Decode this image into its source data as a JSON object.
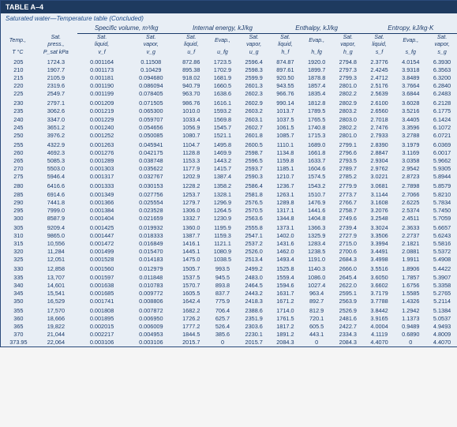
{
  "title": "TABLE A–4",
  "subtitle": "Saturated water—Temperature table (Concluded)",
  "group_headers": [
    "Specific volume,\nm³/kg",
    "Internal energy,\nkJ/kg",
    "Enthalpy,\nkJ/kg",
    "Entropy,\nkJ/kg·K"
  ],
  "col_labels_r1": [
    "Temp.,",
    "Sat. press.,",
    "Sat. liquid,",
    "Sat. vapor,",
    "Sat. liquid,",
    "Evap.,",
    "Sat. vapor,",
    "Sat. liquid,",
    "Evap.,",
    "Sat. vapor,",
    "Sat. liquid,",
    "Evap.,",
    "Sat. vapor,"
  ],
  "col_symbols": [
    "T °C",
    "P_sat kPa",
    "v_f",
    "v_g",
    "u_f",
    "u_fg",
    "u_g",
    "h_f",
    "h_fg",
    "h_g",
    "s_f",
    "s_fg",
    "s_g"
  ],
  "rows": [
    [
      "205",
      "1724.3",
      "0.001164",
      "0.11508",
      "872.86",
      "1723.5",
      "2596.4",
      "874.87",
      "1920.0",
      "2794.8",
      "2.3776",
      "4.0154",
      "6.3930"
    ],
    [
      "210",
      "1907.7",
      "0.001173",
      "0.10429",
      "895.38",
      "1702.9",
      "2598.3",
      "897.61",
      "1899.7",
      "2797.3",
      "2.4245",
      "3.9318",
      "6.3563"
    ],
    [
      "215",
      "2105.9",
      "0.001181",
      "0.094680",
      "918.02",
      "1681.9",
      "2599.9",
      "920.50",
      "1878.8",
      "2799.3",
      "2.4712",
      "3.8489",
      "6.3200"
    ],
    [
      "220",
      "2319.6",
      "0.001190",
      "0.086094",
      "940.79",
      "1660.5",
      "2601.3",
      "943.55",
      "1857.4",
      "2801.0",
      "2.5176",
      "3.7664",
      "6.2840"
    ],
    [
      "225",
      "2549.7",
      "0.001199",
      "0.078405",
      "963.70",
      "1638.6",
      "2602.3",
      "966.76",
      "1835.4",
      "2802.2",
      "2.5639",
      "3.6844",
      "6.2483"
    ],
    [],
    [
      "230",
      "2797.1",
      "0.001209",
      "0.071505",
      "986.76",
      "1616.1",
      "2602.9",
      "990.14",
      "1812.8",
      "2802.9",
      "2.6100",
      "3.6028",
      "6.2128"
    ],
    [
      "235",
      "3062.6",
      "0.001219",
      "0.065300",
      "1010.0",
      "1593.2",
      "2603.2",
      "1013.7",
      "1789.5",
      "2803.2",
      "2.6560",
      "3.5216",
      "6.1775"
    ],
    [
      "240",
      "3347.0",
      "0.001229",
      "0.059707",
      "1033.4",
      "1569.8",
      "2603.1",
      "1037.5",
      "1765.5",
      "2803.0",
      "2.7018",
      "3.4405",
      "6.1424"
    ],
    [
      "245",
      "3651.2",
      "0.001240",
      "0.054656",
      "1056.9",
      "1545.7",
      "2602.7",
      "1061.5",
      "1740.8",
      "2802.2",
      "2.7476",
      "3.3596",
      "6.1072"
    ],
    [
      "250",
      "3976.2",
      "0.001252",
      "0.050085",
      "1080.7",
      "1521.1",
      "2601.8",
      "1085.7",
      "1715.3",
      "2801.0",
      "2.7933",
      "3.2788",
      "6.0721"
    ],
    [],
    [
      "255",
      "4322.9",
      "0.001263",
      "0.045941",
      "1104.7",
      "1495.8",
      "2600.5",
      "1110.1",
      "1689.0",
      "2799.1",
      "2.8390",
      "3.1979",
      "6.0369"
    ],
    [
      "260",
      "4692.3",
      "0.001276",
      "0.042175",
      "1128.8",
      "1469.9",
      "2598.7",
      "1134.8",
      "1661.8",
      "2796.6",
      "2.8847",
      "3.1169",
      "6.0017"
    ],
    [
      "265",
      "5085.3",
      "0.001289",
      "0.038748",
      "1153.3",
      "1443.2",
      "2596.5",
      "1159.8",
      "1633.7",
      "2793.5",
      "2.9304",
      "3.0358",
      "5.9662"
    ],
    [
      "270",
      "5503.0",
      "0.001303",
      "0.035622",
      "1177.9",
      "1415.7",
      "2593.7",
      "1185.1",
      "1604.6",
      "2789.7",
      "2.9762",
      "2.9542",
      "5.9305"
    ],
    [
      "275",
      "5946.4",
      "0.001317",
      "0.032767",
      "1202.9",
      "1387.4",
      "2590.3",
      "1210.7",
      "1574.5",
      "2785.2",
      "3.0221",
      "2.8723",
      "5.8944"
    ],
    [],
    [
      "280",
      "6416.6",
      "0.001333",
      "0.030153",
      "1228.2",
      "1358.2",
      "2586.4",
      "1236.7",
      "1543.2",
      "2779.9",
      "3.0681",
      "2.7898",
      "5.8579"
    ],
    [
      "285",
      "6914.6",
      "0.001349",
      "0.027756",
      "1253.7",
      "1328.1",
      "2581.8",
      "1263.1",
      "1510.7",
      "2773.7",
      "3.1144",
      "2.7066",
      "5.8210"
    ],
    [
      "290",
      "7441.8",
      "0.001366",
      "0.025554",
      "1279.7",
      "1296.9",
      "2576.5",
      "1289.8",
      "1476.9",
      "2766.7",
      "3.1608",
      "2.6225",
      "5.7834"
    ],
    [
      "295",
      "7999.0",
      "0.001384",
      "0.023528",
      "1306.0",
      "1264.5",
      "2570.5",
      "1317.1",
      "1441.6",
      "2758.7",
      "3.2076",
      "2.5374",
      "5.7450"
    ],
    [
      "300",
      "8587.9",
      "0.001404",
      "0.021659",
      "1332.7",
      "1230.9",
      "2563.6",
      "1344.8",
      "1404.8",
      "2749.6",
      "3.2548",
      "2.4511",
      "5.7059"
    ],
    [],
    [
      "305",
      "9209.4",
      "0.001425",
      "0.019932",
      "1360.0",
      "1195.9",
      "2555.8",
      "1373.1",
      "1366.3",
      "2739.4",
      "3.3024",
      "2.3633",
      "5.6657"
    ],
    [
      "310",
      "9865.0",
      "0.001447",
      "0.018333",
      "1387.7",
      "1159.3",
      "2547.1",
      "1402.0",
      "1325.9",
      "2727.9",
      "3.3506",
      "2.2737",
      "5.6243"
    ],
    [
      "315",
      "10,556",
      "0.001472",
      "0.016849",
      "1416.1",
      "1121.1",
      "2537.2",
      "1431.6",
      "1283.4",
      "2715.0",
      "3.3994",
      "2.1821",
      "5.5816"
    ],
    [
      "320",
      "11,284",
      "0.001499",
      "0.015470",
      "1445.1",
      "1080.9",
      "2526.0",
      "1462.0",
      "1238.5",
      "2700.6",
      "3.4491",
      "2.0881",
      "5.5372"
    ],
    [
      "325",
      "12,051",
      "0.001528",
      "0.014183",
      "1475.0",
      "1038.5",
      "2513.4",
      "1493.4",
      "1191.0",
      "2684.3",
      "3.4998",
      "1.9911",
      "5.4908"
    ],
    [],
    [
      "330",
      "12,858",
      "0.001560",
      "0.012979",
      "1505.7",
      "993.5",
      "2499.2",
      "1525.8",
      "1140.3",
      "2666.0",
      "3.5516",
      "1.8906",
      "5.4422"
    ],
    [
      "335",
      "13,707",
      "0.001597",
      "0.011848",
      "1537.5",
      "945.5",
      "2483.0",
      "1559.4",
      "1086.0",
      "2645.4",
      "3.6050",
      "1.7857",
      "5.3907"
    ],
    [
      "340",
      "14,601",
      "0.001638",
      "0.010783",
      "1570.7",
      "893.8",
      "2464.5",
      "1594.6",
      "1027.4",
      "2622.0",
      "3.6602",
      "1.6756",
      "5.3358"
    ],
    [
      "345",
      "15,541",
      "0.001685",
      "0.009772",
      "1605.5",
      "837.7",
      "2443.2",
      "1631.7",
      "963.4",
      "2595.1",
      "3.7179",
      "1.5585",
      "5.2765"
    ],
    [
      "350",
      "16,529",
      "0.001741",
      "0.008806",
      "1642.4",
      "775.9",
      "2418.3",
      "1671.2",
      "892.7",
      "2563.9",
      "3.7788",
      "1.4326",
      "5.2114"
    ],
    [],
    [
      "355",
      "17,570",
      "0.001808",
      "0.007872",
      "1682.2",
      "706.4",
      "2388.6",
      "1714.0",
      "812.9",
      "2526.9",
      "3.8442",
      "1.2942",
      "5.1384"
    ],
    [
      "360",
      "18,666",
      "0.001895",
      "0.006950",
      "1726.2",
      "625.7",
      "2351.9",
      "1761.5",
      "720.1",
      "2481.6",
      "3.9165",
      "1.1373",
      "5.0537"
    ],
    [
      "365",
      "19,822",
      "0.002015",
      "0.006009",
      "1777.2",
      "526.4",
      "2303.6",
      "1817.2",
      "605.5",
      "2422.7",
      "4.0004",
      "0.9489",
      "4.9493"
    ],
    [
      "370",
      "21,044",
      "0.002217",
      "0.004953",
      "1844.5",
      "385.6",
      "2230.1",
      "1891.2",
      "443.1",
      "2334.3",
      "4.1119",
      "0.6890",
      "4.8009"
    ],
    [
      "373.95",
      "22,064",
      "0.003106",
      "0.003106",
      "2015.7",
      "0",
      "2015.7",
      "2084.3",
      "0",
      "2084.3",
      "4.4070",
      "0",
      "4.4070"
    ]
  ]
}
